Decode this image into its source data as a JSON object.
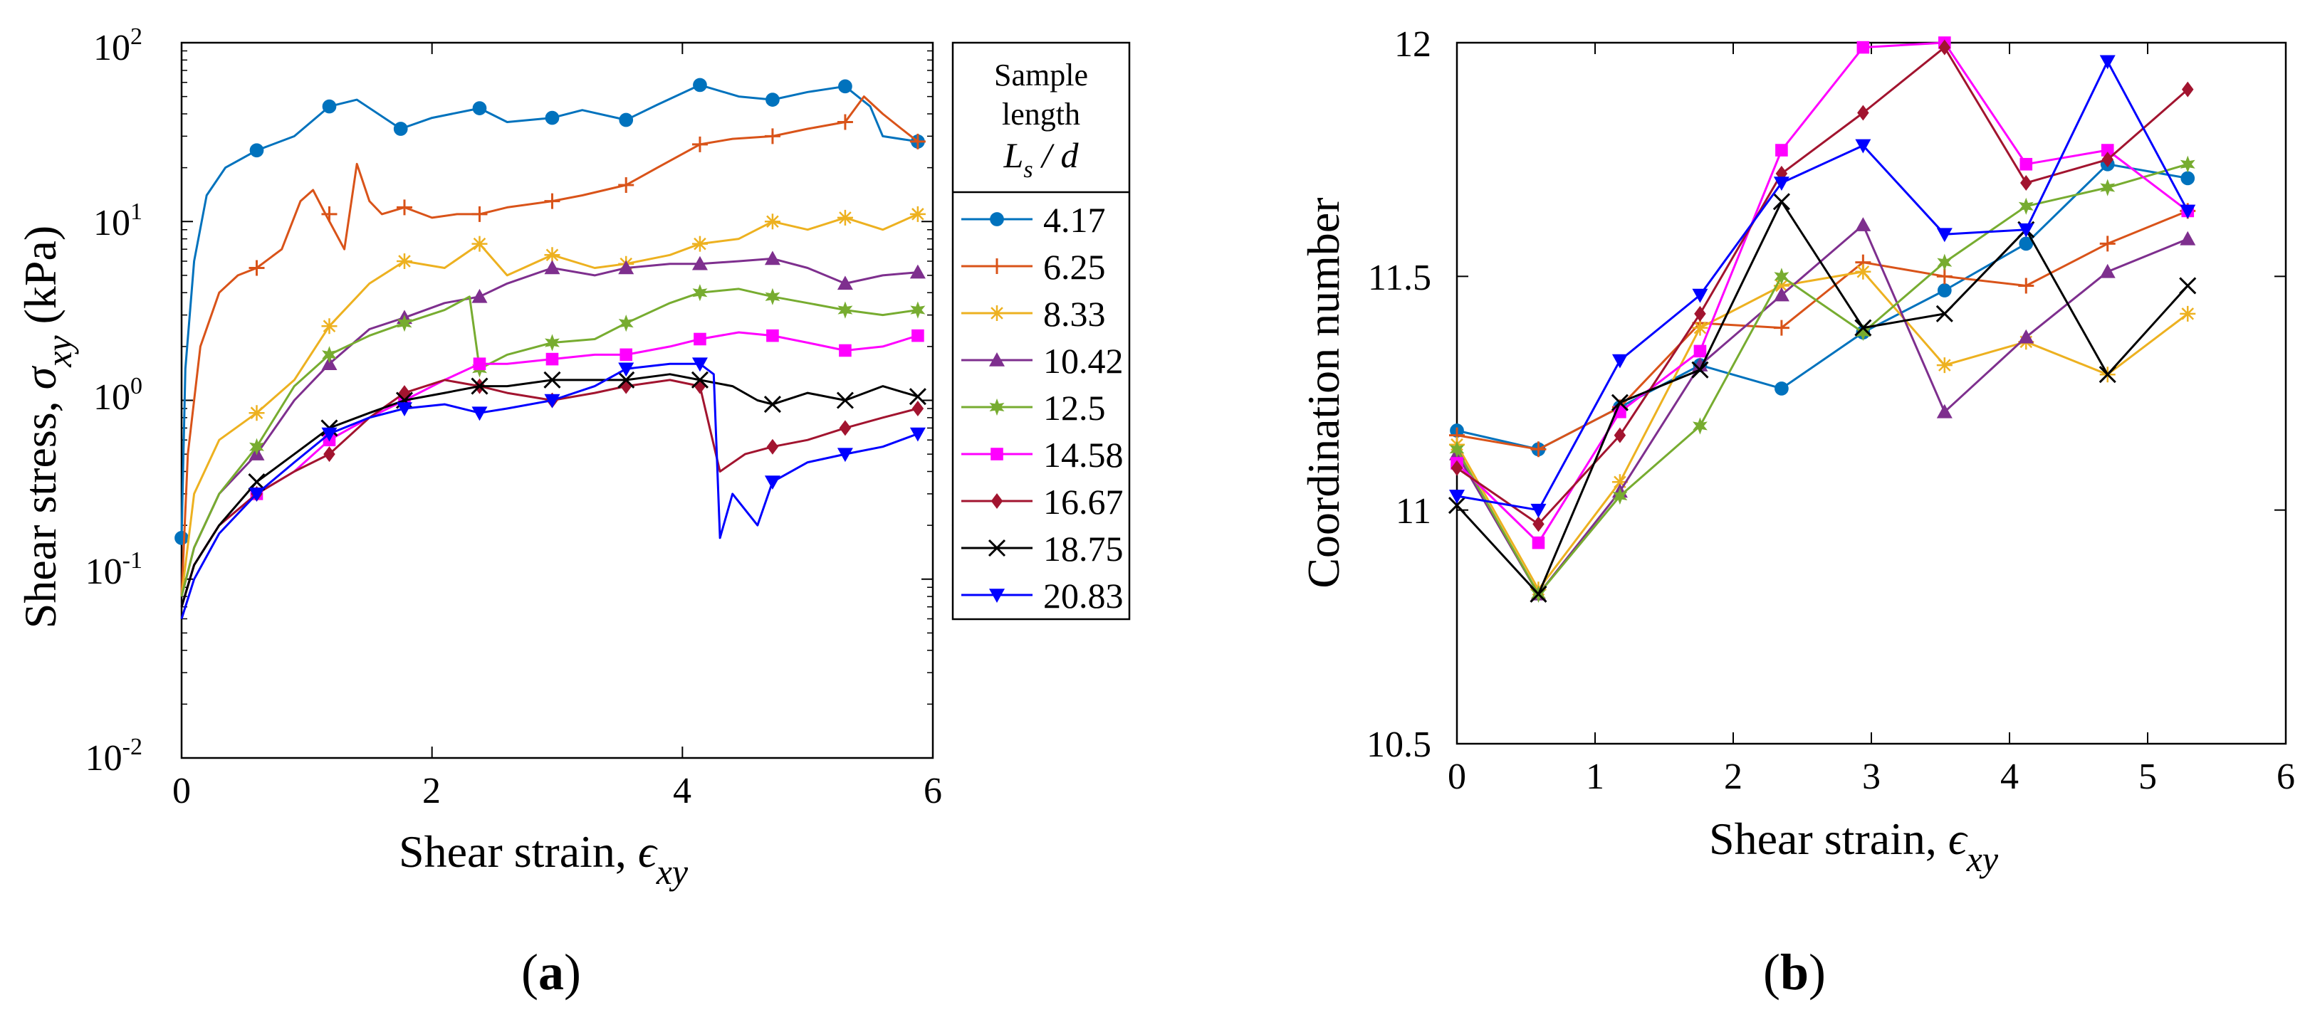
{
  "panels": {
    "a": {
      "label_open": "(",
      "label_letter": "a",
      "label_close": ")"
    },
    "b": {
      "label_open": "(",
      "label_letter": "b",
      "label_close": ")"
    }
  },
  "legend": {
    "title_line1": "Sample",
    "title_line2": "length",
    "title_line3_main": "L",
    "title_line3_sub": "s",
    "title_line3_rest": " / d"
  },
  "colors": {
    "4.17": "#0072BD",
    "6.25": "#D95319",
    "8.33": "#EDB120",
    "10.42": "#7E2F8E",
    "12.5": "#77AC30",
    "14.58": "#FF00FF",
    "16.67": "#A2142F",
    "18.75": "#000000",
    "20.83": "#0000FF"
  },
  "chart_data": [
    {
      "type": "line",
      "panel": "a",
      "title": "",
      "xlabel_main": "Shear strain, ",
      "xlabel_symbol": "ϵ",
      "xlabel_sub": "xy",
      "ylabel_main": "Shear stress, ",
      "ylabel_symbol": "σ",
      "ylabel_sub": "xy",
      "ylabel_unit": " (kPa)",
      "xlim": [
        0,
        6
      ],
      "ylim": [
        0.01,
        100
      ],
      "yscale": "log",
      "xticks": [
        "0",
        "2",
        "4",
        "6"
      ],
      "yticks": [
        {
          "base": "10",
          "exp": "-2"
        },
        {
          "base": "10",
          "exp": "-1"
        },
        {
          "base": "10",
          "exp": "0"
        },
        {
          "base": "10",
          "exp": "1"
        },
        {
          "base": "10",
          "exp": "2"
        }
      ],
      "series": [
        {
          "name": "4.17",
          "marker": "circle",
          "x": [
            0,
            0.03,
            0.1,
            0.2,
            0.35,
            0.6,
            0.9,
            1.18,
            1.4,
            1.75,
            2.0,
            2.38,
            2.6,
            2.96,
            3.2,
            3.55,
            3.8,
            4.14,
            4.45,
            4.72,
            5.0,
            5.3,
            5.5,
            5.6,
            5.88
          ],
          "y": [
            0.17,
            1.5,
            6,
            14,
            20,
            25,
            30,
            44,
            48,
            33,
            38,
            43,
            36,
            38,
            42,
            37,
            45,
            58,
            50,
            48,
            53,
            57,
            44,
            30,
            28
          ],
          "markers_x": [
            0.0,
            0.6,
            1.18,
            1.75,
            2.38,
            2.96,
            3.55,
            4.14,
            4.72,
            5.3,
            5.88
          ],
          "markers_y": [
            0.17,
            25,
            44,
            33,
            43,
            38,
            37,
            58,
            48,
            57,
            28
          ]
        },
        {
          "name": "6.25",
          "marker": "plus",
          "x": [
            0,
            0.05,
            0.15,
            0.3,
            0.45,
            0.6,
            0.8,
            0.95,
            1.05,
            1.15,
            1.3,
            1.4,
            1.5,
            1.6,
            1.78,
            2.0,
            2.2,
            2.38,
            2.6,
            2.96,
            3.2,
            3.55,
            3.8,
            4.14,
            4.4,
            4.72,
            5.0,
            5.3,
            5.45,
            5.6,
            5.75,
            5.88
          ],
          "y": [
            0.08,
            0.5,
            2,
            4,
            5,
            5.5,
            7,
            13,
            15,
            11,
            7,
            21,
            13,
            11,
            12,
            10.5,
            11,
            11,
            12,
            13,
            14,
            16,
            20,
            27,
            29,
            30,
            33,
            36,
            50,
            40,
            33,
            28
          ],
          "markers_x": [
            0.6,
            1.18,
            1.78,
            2.38,
            2.96,
            3.55,
            4.14,
            4.72,
            5.3,
            5.88
          ],
          "markers_y": [
            5.5,
            11,
            12,
            11,
            13,
            16,
            27,
            30,
            36,
            28
          ]
        },
        {
          "name": "8.33",
          "marker": "asterisk",
          "x": [
            0,
            0.1,
            0.3,
            0.6,
            0.9,
            1.18,
            1.5,
            1.78,
            2.1,
            2.38,
            2.6,
            2.96,
            3.3,
            3.55,
            3.9,
            4.14,
            4.45,
            4.72,
            5.0,
            5.3,
            5.6,
            5.88
          ],
          "y": [
            0.08,
            0.3,
            0.6,
            0.85,
            1.3,
            2.6,
            4.5,
            6,
            5.5,
            7.5,
            5,
            6.5,
            5.5,
            5.8,
            6.5,
            7.5,
            8,
            10,
            9,
            10.5,
            9,
            11
          ],
          "markers_x": [
            0.6,
            1.18,
            1.78,
            2.38,
            2.96,
            3.55,
            4.14,
            4.72,
            5.3,
            5.88
          ],
          "markers_y": [
            0.85,
            2.6,
            6,
            7.5,
            6.5,
            5.8,
            7.5,
            10,
            10.5,
            11
          ]
        },
        {
          "name": "10.42",
          "marker": "triangle-up",
          "x": [
            0,
            0.1,
            0.3,
            0.6,
            0.9,
            1.18,
            1.5,
            1.78,
            2.1,
            2.38,
            2.6,
            2.96,
            3.3,
            3.55,
            3.9,
            4.14,
            4.45,
            4.72,
            5.0,
            5.3,
            5.6,
            5.88
          ],
          "y": [
            0.08,
            0.15,
            0.3,
            0.5,
            1.0,
            1.6,
            2.5,
            2.9,
            3.5,
            3.8,
            4.5,
            5.5,
            5.0,
            5.5,
            5.8,
            5.8,
            6,
            6.2,
            5.5,
            4.5,
            5,
            5.2
          ],
          "markers_x": [
            0.6,
            1.18,
            1.78,
            2.38,
            2.96,
            3.55,
            4.14,
            4.72,
            5.3,
            5.88
          ],
          "markers_y": [
            0.5,
            1.6,
            2.9,
            3.8,
            5.5,
            5.5,
            5.8,
            6.2,
            4.5,
            5.2
          ]
        },
        {
          "name": "12.5",
          "marker": "star",
          "x": [
            0,
            0.1,
            0.3,
            0.6,
            0.9,
            1.18,
            1.5,
            1.78,
            2.1,
            2.3,
            2.38,
            2.6,
            2.96,
            3.3,
            3.55,
            3.9,
            4.14,
            4.45,
            4.72,
            5.0,
            5.3,
            5.6,
            5.88
          ],
          "y": [
            0.08,
            0.15,
            0.3,
            0.55,
            1.2,
            1.8,
            2.3,
            2.7,
            3.2,
            3.8,
            1.5,
            1.8,
            2.1,
            2.2,
            2.7,
            3.5,
            4.0,
            4.2,
            3.8,
            3.5,
            3.2,
            3.0,
            3.2
          ],
          "markers_x": [
            0.6,
            1.18,
            1.78,
            2.38,
            2.96,
            3.55,
            4.14,
            4.72,
            5.3,
            5.88
          ],
          "markers_y": [
            0.55,
            1.8,
            2.7,
            1.5,
            2.1,
            2.7,
            4.0,
            3.8,
            3.2,
            3.2
          ]
        },
        {
          "name": "14.58",
          "marker": "square",
          "x": [
            0,
            0.1,
            0.3,
            0.6,
            0.9,
            1.18,
            1.5,
            1.78,
            2.1,
            2.38,
            2.6,
            2.96,
            3.3,
            3.55,
            3.9,
            4.14,
            4.45,
            4.72,
            5.0,
            5.3,
            5.6,
            5.88
          ],
          "y": [
            0.07,
            0.12,
            0.2,
            0.3,
            0.4,
            0.6,
            0.8,
            1.0,
            1.3,
            1.6,
            1.6,
            1.7,
            1.8,
            1.8,
            2.0,
            2.2,
            2.4,
            2.3,
            2.1,
            1.9,
            2.0,
            2.3
          ],
          "markers_x": [
            0.6,
            1.18,
            1.78,
            2.38,
            2.96,
            3.55,
            4.14,
            4.72,
            5.3,
            5.88
          ],
          "markers_y": [
            0.3,
            0.6,
            1.0,
            1.6,
            1.7,
            1.8,
            2.2,
            2.3,
            1.9,
            2.3
          ]
        },
        {
          "name": "16.67",
          "marker": "diamond",
          "x": [
            0,
            0.1,
            0.3,
            0.6,
            0.9,
            1.18,
            1.5,
            1.78,
            2.1,
            2.38,
            2.6,
            2.96,
            3.3,
            3.55,
            3.9,
            4.14,
            4.3,
            4.5,
            4.72,
            5.0,
            5.3,
            5.6,
            5.88
          ],
          "y": [
            0.07,
            0.12,
            0.2,
            0.3,
            0.4,
            0.5,
            0.8,
            1.1,
            1.3,
            1.2,
            1.1,
            1.0,
            1.1,
            1.2,
            1.3,
            1.2,
            0.4,
            0.5,
            0.55,
            0.6,
            0.7,
            0.8,
            0.9
          ],
          "markers_x": [
            0.6,
            1.18,
            1.78,
            2.38,
            2.96,
            3.55,
            4.14,
            4.72,
            5.3,
            5.88
          ],
          "markers_y": [
            0.3,
            0.5,
            1.1,
            1.2,
            1.0,
            1.2,
            1.2,
            0.55,
            0.7,
            0.9
          ]
        },
        {
          "name": "18.75",
          "marker": "x",
          "x": [
            0,
            0.1,
            0.3,
            0.6,
            0.9,
            1.18,
            1.5,
            1.78,
            2.1,
            2.38,
            2.6,
            2.96,
            3.3,
            3.55,
            3.9,
            4.14,
            4.4,
            4.6,
            4.72,
            5.0,
            5.3,
            5.6,
            5.88
          ],
          "y": [
            0.07,
            0.12,
            0.2,
            0.35,
            0.5,
            0.7,
            0.85,
            1.0,
            1.1,
            1.2,
            1.2,
            1.3,
            1.3,
            1.3,
            1.4,
            1.3,
            1.2,
            1.0,
            0.95,
            1.1,
            1.0,
            1.2,
            1.05
          ],
          "markers_x": [
            0.6,
            1.18,
            1.78,
            2.38,
            2.96,
            3.55,
            4.14,
            4.72,
            5.3,
            5.88
          ],
          "markers_y": [
            0.35,
            0.7,
            1.0,
            1.2,
            1.3,
            1.3,
            1.3,
            0.95,
            1.0,
            1.05
          ]
        },
        {
          "name": "20.83",
          "marker": "triangle-down",
          "x": [
            0,
            0.1,
            0.3,
            0.6,
            0.9,
            1.18,
            1.5,
            1.78,
            2.1,
            2.38,
            2.6,
            2.96,
            3.3,
            3.55,
            3.9,
            4.14,
            4.25,
            4.3,
            4.4,
            4.6,
            4.72,
            5.0,
            5.3,
            5.6,
            5.88
          ],
          "y": [
            0.06,
            0.1,
            0.18,
            0.3,
            0.45,
            0.65,
            0.8,
            0.9,
            0.95,
            0.85,
            0.9,
            1.0,
            1.2,
            1.5,
            1.6,
            1.6,
            1.4,
            0.17,
            0.3,
            0.2,
            0.35,
            0.45,
            0.5,
            0.55,
            0.65
          ],
          "markers_x": [
            0.6,
            1.18,
            1.78,
            2.38,
            2.96,
            3.55,
            4.14,
            4.72,
            5.3,
            5.88
          ],
          "markers_y": [
            0.3,
            0.65,
            0.9,
            0.85,
            1.0,
            1.5,
            1.6,
            0.35,
            0.5,
            0.65
          ]
        }
      ]
    },
    {
      "type": "line",
      "panel": "b",
      "title": "",
      "xlabel_main": "Shear strain, ",
      "xlabel_symbol": "ϵ",
      "xlabel_sub": "xy",
      "ylabel": "Coordination number",
      "xlim": [
        0,
        6
      ],
      "ylim": [
        10.5,
        12
      ],
      "xticks": [
        "0",
        "1",
        "2",
        "3",
        "4",
        "5",
        "6"
      ],
      "yticks": [
        "10.5",
        "11",
        "11.5",
        "12"
      ],
      "x": [
        0,
        0.59,
        1.18,
        1.76,
        2.35,
        2.94,
        3.53,
        4.12,
        4.71,
        5.29
      ],
      "series": [
        {
          "name": "4.17",
          "marker": "circle",
          "values": [
            11.17,
            11.13,
            11.22,
            11.31,
            11.26,
            11.38,
            11.47,
            11.57,
            11.74,
            11.71
          ]
        },
        {
          "name": "6.25",
          "marker": "plus",
          "values": [
            11.16,
            11.13,
            11.22,
            11.4,
            11.39,
            11.53,
            11.5,
            11.48,
            11.57,
            11.64
          ]
        },
        {
          "name": "8.33",
          "marker": "asterisk",
          "values": [
            11.14,
            10.83,
            11.06,
            11.39,
            11.48,
            11.51,
            11.31,
            11.36,
            11.29,
            11.42
          ]
        },
        {
          "name": "10.42",
          "marker": "triangle-up",
          "values": [
            11.12,
            10.82,
            11.04,
            11.31,
            11.46,
            11.61,
            11.21,
            11.37,
            11.51,
            11.58
          ]
        },
        {
          "name": "12.5",
          "marker": "star",
          "values": [
            11.13,
            10.82,
            11.03,
            11.18,
            11.5,
            11.38,
            11.53,
            11.65,
            11.69,
            11.74
          ]
        },
        {
          "name": "14.58",
          "marker": "square",
          "values": [
            11.1,
            10.93,
            11.21,
            11.34,
            11.77,
            11.99,
            12.0,
            11.74,
            11.77,
            11.64
          ]
        },
        {
          "name": "16.67",
          "marker": "diamond",
          "values": [
            11.09,
            10.97,
            11.16,
            11.42,
            11.72,
            11.85,
            11.99,
            11.7,
            11.75,
            11.9
          ]
        },
        {
          "name": "18.75",
          "marker": "x",
          "values": [
            11.01,
            10.82,
            11.23,
            11.3,
            11.66,
            11.39,
            11.42,
            11.6,
            11.29,
            11.48
          ]
        },
        {
          "name": "20.83",
          "marker": "triangle-down",
          "values": [
            11.03,
            11.0,
            11.32,
            11.46,
            11.7,
            11.78,
            11.59,
            11.6,
            11.96,
            11.64
          ]
        }
      ]
    }
  ]
}
